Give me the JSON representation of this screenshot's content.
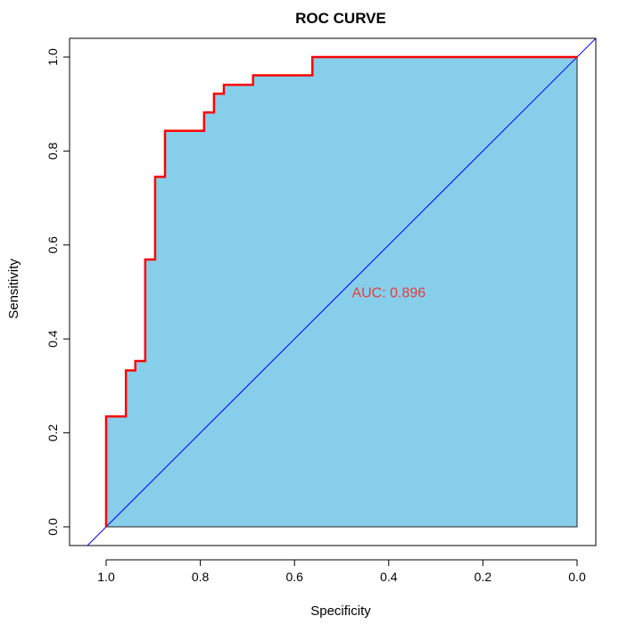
{
  "chart_data": {
    "type": "line",
    "title": "ROC CURVE",
    "xlabel": "Specificity",
    "ylabel": "Sensitivity",
    "x_reversed": true,
    "xlim": [
      1.0,
      0.0
    ],
    "ylim": [
      0.0,
      1.0
    ],
    "xticks": [
      "1.0",
      "0.8",
      "0.6",
      "0.4",
      "0.2",
      "0.0"
    ],
    "yticks": [
      "0.0",
      "0.2",
      "0.4",
      "0.6",
      "0.8",
      "1.0"
    ],
    "grid": false,
    "legend": "none",
    "annotation": "AUC: 0.896",
    "auc": 0.896,
    "series": [
      {
        "style": "step",
        "color": "#ff0000",
        "fill": "#87ceeb",
        "points": [
          [
            1.0,
            0.0
          ],
          [
            1.0,
            0.235
          ],
          [
            0.958,
            0.235
          ],
          [
            0.958,
            0.333
          ],
          [
            0.938,
            0.333
          ],
          [
            0.938,
            0.353
          ],
          [
            0.917,
            0.353
          ],
          [
            0.917,
            0.569
          ],
          [
            0.896,
            0.569
          ],
          [
            0.896,
            0.745
          ],
          [
            0.875,
            0.745
          ],
          [
            0.875,
            0.843
          ],
          [
            0.792,
            0.843
          ],
          [
            0.792,
            0.882
          ],
          [
            0.771,
            0.882
          ],
          [
            0.771,
            0.922
          ],
          [
            0.75,
            0.922
          ],
          [
            0.75,
            0.941
          ],
          [
            0.688,
            0.941
          ],
          [
            0.688,
            0.961
          ],
          [
            0.562,
            0.961
          ],
          [
            0.562,
            1.0
          ],
          [
            0.0,
            1.0
          ]
        ]
      },
      {
        "style": "reference",
        "color": "#0000ff",
        "points": [
          [
            1.0,
            0.0
          ],
          [
            0.0,
            1.0
          ]
        ]
      }
    ]
  }
}
